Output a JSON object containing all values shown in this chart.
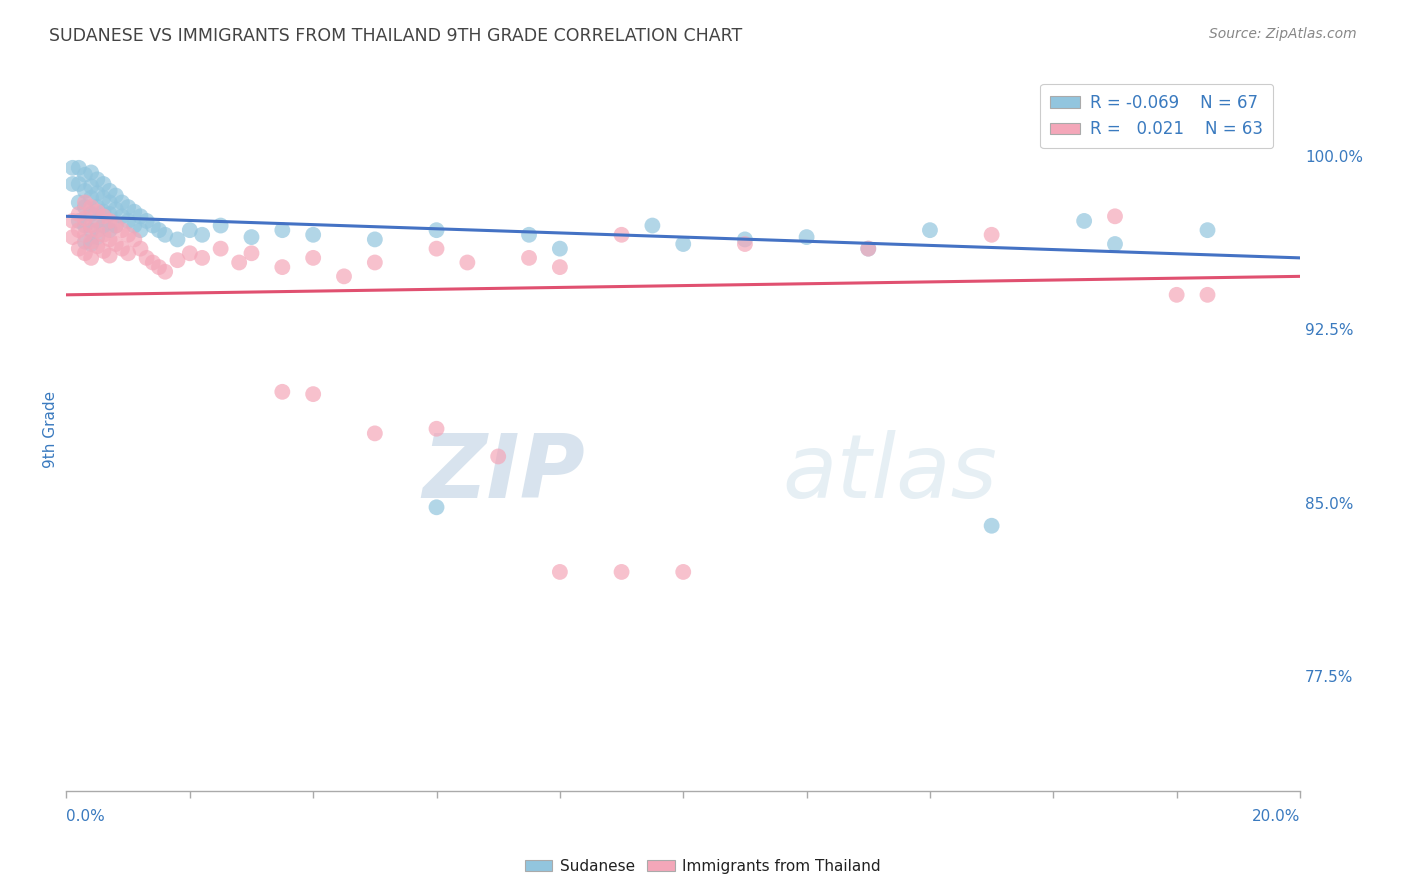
{
  "title": "SUDANESE VS IMMIGRANTS FROM THAILAND 9TH GRADE CORRELATION CHART",
  "source_text": "Source: ZipAtlas.com",
  "ylabel": "9th Grade",
  "yticks": [
    "77.5%",
    "85.0%",
    "92.5%",
    "100.0%"
  ],
  "ytick_vals": [
    0.775,
    0.85,
    0.925,
    1.0
  ],
  "xlim": [
    0.0,
    0.2
  ],
  "ylim": [
    0.725,
    1.038
  ],
  "blue_color": "#92c5de",
  "pink_color": "#f4a7b9",
  "trend_blue": "#4472c4",
  "trend_pink": "#e05070",
  "blue_scatter_x": [
    0.001,
    0.001,
    0.002,
    0.002,
    0.002,
    0.002,
    0.003,
    0.003,
    0.003,
    0.003,
    0.003,
    0.004,
    0.004,
    0.004,
    0.004,
    0.004,
    0.004,
    0.005,
    0.005,
    0.005,
    0.005,
    0.005,
    0.006,
    0.006,
    0.006,
    0.006,
    0.007,
    0.007,
    0.007,
    0.007,
    0.008,
    0.008,
    0.008,
    0.009,
    0.009,
    0.01,
    0.01,
    0.011,
    0.011,
    0.012,
    0.012,
    0.013,
    0.014,
    0.015,
    0.016,
    0.018,
    0.02,
    0.022,
    0.025,
    0.03,
    0.035,
    0.04,
    0.05,
    0.06,
    0.075,
    0.095,
    0.12,
    0.14,
    0.165,
    0.185,
    0.06,
    0.08,
    0.1,
    0.11,
    0.13,
    0.15,
    0.17
  ],
  "blue_scatter_y": [
    0.995,
    0.988,
    0.995,
    0.988,
    0.98,
    0.972,
    0.992,
    0.985,
    0.978,
    0.97,
    0.963,
    0.993,
    0.987,
    0.982,
    0.975,
    0.968,
    0.962,
    0.99,
    0.984,
    0.978,
    0.972,
    0.965,
    0.988,
    0.982,
    0.976,
    0.97,
    0.985,
    0.98,
    0.975,
    0.968,
    0.983,
    0.977,
    0.97,
    0.98,
    0.974,
    0.978,
    0.972,
    0.976,
    0.97,
    0.974,
    0.968,
    0.972,
    0.97,
    0.968,
    0.966,
    0.964,
    0.968,
    0.966,
    0.97,
    0.965,
    0.968,
    0.966,
    0.964,
    0.968,
    0.966,
    0.97,
    0.965,
    0.968,
    0.972,
    0.968,
    0.848,
    0.96,
    0.962,
    0.964,
    0.96,
    0.84,
    0.962
  ],
  "pink_scatter_x": [
    0.001,
    0.001,
    0.002,
    0.002,
    0.002,
    0.003,
    0.003,
    0.003,
    0.003,
    0.004,
    0.004,
    0.004,
    0.004,
    0.005,
    0.005,
    0.005,
    0.006,
    0.006,
    0.006,
    0.007,
    0.007,
    0.007,
    0.008,
    0.008,
    0.009,
    0.009,
    0.01,
    0.01,
    0.011,
    0.012,
    0.013,
    0.014,
    0.015,
    0.016,
    0.018,
    0.02,
    0.022,
    0.025,
    0.028,
    0.03,
    0.035,
    0.04,
    0.045,
    0.05,
    0.06,
    0.065,
    0.075,
    0.08,
    0.09,
    0.1,
    0.11,
    0.13,
    0.15,
    0.17,
    0.185,
    0.09,
    0.18,
    0.035,
    0.04,
    0.05,
    0.06,
    0.07,
    0.08
  ],
  "pink_scatter_y": [
    0.972,
    0.965,
    0.975,
    0.968,
    0.96,
    0.98,
    0.973,
    0.966,
    0.958,
    0.978,
    0.97,
    0.963,
    0.956,
    0.976,
    0.968,
    0.961,
    0.974,
    0.966,
    0.959,
    0.972,
    0.964,
    0.957,
    0.97,
    0.962,
    0.968,
    0.96,
    0.966,
    0.958,
    0.964,
    0.96,
    0.956,
    0.954,
    0.952,
    0.95,
    0.955,
    0.958,
    0.956,
    0.96,
    0.954,
    0.958,
    0.952,
    0.956,
    0.948,
    0.954,
    0.96,
    0.954,
    0.956,
    0.952,
    0.966,
    0.82,
    0.962,
    0.96,
    0.966,
    0.974,
    0.94,
    0.82,
    0.94,
    0.898,
    0.897,
    0.88,
    0.882,
    0.87,
    0.82
  ],
  "blue_trend_x": [
    0.0,
    0.2
  ],
  "blue_trend_y": [
    0.974,
    0.956
  ],
  "pink_trend_x": [
    0.0,
    0.2
  ],
  "pink_trend_y": [
    0.94,
    0.948
  ]
}
